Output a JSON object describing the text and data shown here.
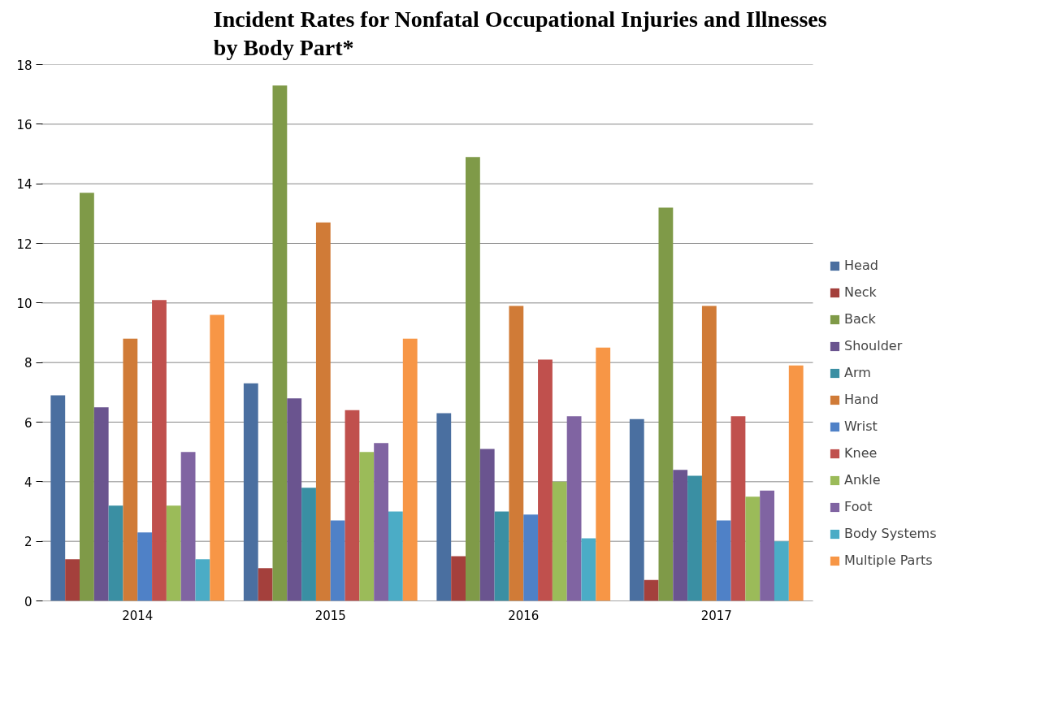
{
  "chart_data": {
    "type": "bar",
    "title": "Incident Rates for Nonfatal Occupational Injuries and Illnesses\nby Body Part*",
    "categories": [
      "2014",
      "2015",
      "2016",
      "2017"
    ],
    "series": [
      {
        "name": "Head",
        "color": "#4a6fa0",
        "values": [
          6.9,
          7.3,
          6.3,
          6.1
        ]
      },
      {
        "name": "Neck",
        "color": "#a4403c",
        "values": [
          1.4,
          1.1,
          1.5,
          0.7
        ]
      },
      {
        "name": "Back",
        "color": "#7f9a48",
        "values": [
          13.7,
          17.3,
          14.9,
          13.2
        ]
      },
      {
        "name": "Shoulder",
        "color": "#6a548f",
        "values": [
          6.5,
          6.8,
          5.1,
          4.4
        ]
      },
      {
        "name": "Arm",
        "color": "#3a8fa3",
        "values": [
          3.2,
          3.8,
          3.0,
          4.2
        ]
      },
      {
        "name": "Hand",
        "color": "#d07b37",
        "values": [
          8.8,
          12.7,
          9.9,
          9.9
        ]
      },
      {
        "name": "Wrist",
        "color": "#4f81c7",
        "values": [
          2.3,
          2.7,
          2.9,
          2.7
        ]
      },
      {
        "name": "Knee",
        "color": "#c0504d",
        "values": [
          10.1,
          6.4,
          8.1,
          6.2
        ]
      },
      {
        "name": "Ankle",
        "color": "#9bbb59",
        "values": [
          3.2,
          5.0,
          4.0,
          3.5
        ]
      },
      {
        "name": "Foot",
        "color": "#8064a2",
        "values": [
          5.0,
          5.3,
          6.2,
          3.7
        ]
      },
      {
        "name": "Body Systems",
        "color": "#4bacc6",
        "values": [
          1.4,
          3.0,
          2.1,
          2.0
        ]
      },
      {
        "name": "Multiple Parts",
        "color": "#f79646",
        "values": [
          9.6,
          8.8,
          8.5,
          7.9
        ]
      }
    ],
    "ylim": [
      0,
      18
    ],
    "yticks": [
      0,
      2,
      4,
      6,
      8,
      10,
      12,
      14,
      16,
      18
    ],
    "grid": "y",
    "legend": "right"
  }
}
